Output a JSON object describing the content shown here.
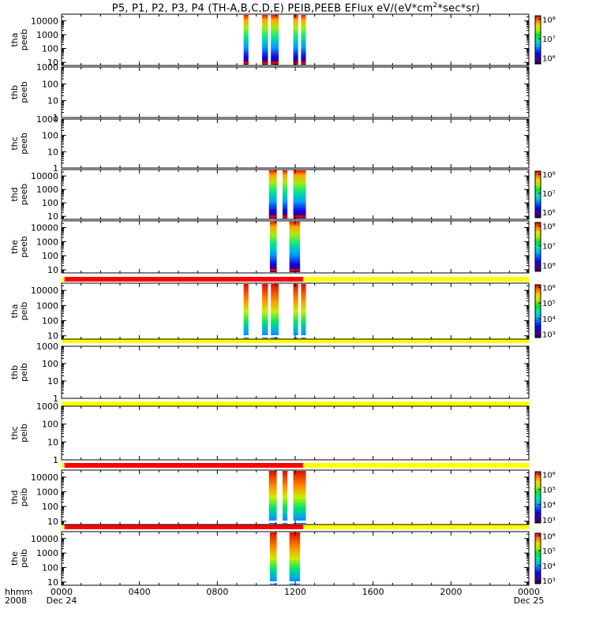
{
  "title": {
    "before_sup1": "P5, P1, P2, P3, P4 (TH-A,B,C,D,E) PEIB,PEEB EFlux eV/(eV*cm",
    "sup1": "2",
    "after_sup1": "*sec*sr)"
  },
  "colors": {
    "mode_red": "#ff0000",
    "mode_yellow": "#ffff00",
    "axis": "#000000"
  },
  "chart_data": {
    "type": "heatmap",
    "x_axis": {
      "label_line1": "hhmm",
      "label_line2": "2008",
      "tick_labels": [
        "0000",
        "0400",
        "0800",
        "1200",
        "1600",
        "2000",
        "0000"
      ],
      "tick_hours": [
        0,
        4,
        8,
        12,
        16,
        20,
        24
      ],
      "date_labels": [
        {
          "text": "Dec 24",
          "hour": 0
        },
        {
          "text": "Dec 25",
          "hour": 24
        }
      ],
      "range_hours": [
        0,
        24
      ],
      "start": "2008-12-24 00:00",
      "end": "2008-12-25 00:00"
    },
    "panels": [
      {
        "id": "tha_peeb",
        "probe": "tha",
        "instrument": "peeb",
        "ylog": true,
        "ylim": [
          6,
          30000
        ],
        "y_tick_labels": [
          "10",
          "100",
          "1000",
          "10000"
        ],
        "y_tick_values": [
          10,
          100,
          1000,
          10000
        ],
        "colorbar": {
          "tick_labels": [
            "10⁶",
            "10⁷",
            "10⁸"
          ],
          "tick_values": [
            1000000,
            10000000,
            100000000
          ],
          "range": [
            500000,
            150000000
          ]
        },
        "data_intervals": [
          {
            "start": 9.35,
            "end": 9.6
          },
          {
            "start": 10.3,
            "end": 10.6
          },
          {
            "start": 10.75,
            "end": 11.15
          },
          {
            "start": 11.9,
            "end": 12.15
          },
          {
            "start": 12.3,
            "end": 12.55
          }
        ]
      },
      {
        "id": "thb_peeb",
        "probe": "thb",
        "instrument": "peeb",
        "ylog": true,
        "ylim": [
          1,
          1000
        ],
        "y_tick_labels": [
          "1",
          "10",
          "100",
          "1000"
        ],
        "y_tick_values": [
          1,
          10,
          100,
          1000
        ],
        "data_intervals": []
      },
      {
        "id": "thc_peeb",
        "probe": "thc",
        "instrument": "peeb",
        "ylog": true,
        "ylim": [
          1,
          1000
        ],
        "y_tick_labels": [
          "1",
          "10",
          "100",
          "1000"
        ],
        "y_tick_values": [
          1,
          10,
          100,
          1000
        ],
        "data_intervals": []
      },
      {
        "id": "thd_peeb",
        "probe": "thd",
        "instrument": "peeb",
        "ylog": true,
        "ylim": [
          6,
          30000
        ],
        "y_tick_labels": [
          "10",
          "100",
          "1000",
          "10000"
        ],
        "y_tick_values": [
          10,
          100,
          1000,
          10000
        ],
        "colorbar": {
          "tick_labels": [
            "10⁶",
            "10⁷",
            "10⁸"
          ],
          "tick_values": [
            1000000,
            10000000,
            100000000
          ],
          "range": [
            500000,
            150000000
          ]
        },
        "data_intervals": [
          {
            "start": 10.65,
            "end": 11.05
          },
          {
            "start": 11.35,
            "end": 11.6
          },
          {
            "start": 11.9,
            "end": 12.55
          }
        ]
      },
      {
        "id": "the_peeb",
        "probe": "the",
        "instrument": "peeb",
        "ylog": true,
        "ylim": [
          6,
          30000
        ],
        "y_tick_labels": [
          "10",
          "100",
          "1000",
          "10000"
        ],
        "y_tick_values": [
          10,
          100,
          1000,
          10000
        ],
        "colorbar": {
          "tick_labels": [
            "10⁶",
            "10⁷",
            "10⁸"
          ],
          "tick_values": [
            1000000,
            10000000,
            100000000
          ],
          "range": [
            500000,
            150000000
          ]
        },
        "data_intervals": [
          {
            "start": 10.7,
            "end": 11.05
          },
          {
            "start": 11.7,
            "end": 12.25
          }
        ]
      },
      {
        "id": "tha_peib",
        "probe": "tha",
        "instrument": "peib",
        "ylog": true,
        "ylim": [
          6,
          30000
        ],
        "y_tick_labels": [
          "10",
          "100",
          "1000",
          "10000"
        ],
        "y_tick_values": [
          10,
          100,
          1000,
          10000
        ],
        "colorbar": {
          "tick_labels": [
            "10³",
            "10⁴",
            "10⁵",
            "10⁶"
          ],
          "tick_values": [
            1000,
            10000,
            100000,
            1000000
          ],
          "range": [
            600,
            1500000
          ]
        },
        "mode_bar": {
          "red": [
            0.15,
            12.4
          ]
        },
        "data_intervals": [
          {
            "start": 9.35,
            "end": 9.6
          },
          {
            "start": 10.3,
            "end": 10.6
          },
          {
            "start": 10.75,
            "end": 11.15
          },
          {
            "start": 11.9,
            "end": 12.15
          },
          {
            "start": 12.3,
            "end": 12.55
          }
        ]
      },
      {
        "id": "thb_peib",
        "probe": "thb",
        "instrument": "peib",
        "ylog": true,
        "ylim": [
          1,
          1000
        ],
        "y_tick_labels": [
          "1",
          "10",
          "100",
          "1000"
        ],
        "y_tick_values": [
          1,
          10,
          100,
          1000
        ],
        "mode_bar": {
          "red": null
        },
        "data_intervals": []
      },
      {
        "id": "thc_peib",
        "probe": "thc",
        "instrument": "peib",
        "ylog": true,
        "ylim": [
          1,
          1000
        ],
        "y_tick_labels": [
          "1",
          "10",
          "100",
          "1000"
        ],
        "y_tick_values": [
          1,
          10,
          100,
          1000
        ],
        "mode_bar": {
          "red": null
        },
        "data_intervals": []
      },
      {
        "id": "thd_peib",
        "probe": "thd",
        "instrument": "peib",
        "ylog": true,
        "ylim": [
          6,
          30000
        ],
        "y_tick_labels": [
          "10",
          "100",
          "1000",
          "10000"
        ],
        "y_tick_values": [
          10,
          100,
          1000,
          10000
        ],
        "colorbar": {
          "tick_labels": [
            "10³",
            "10⁴",
            "10⁵",
            "10⁶"
          ],
          "tick_values": [
            1000,
            10000,
            100000,
            1000000
          ],
          "range": [
            600,
            1500000
          ]
        },
        "mode_bar": {
          "red": [
            0.15,
            12.4
          ]
        },
        "data_intervals": [
          {
            "start": 10.65,
            "end": 11.05
          },
          {
            "start": 11.35,
            "end": 11.6
          },
          {
            "start": 11.9,
            "end": 12.55
          }
        ]
      },
      {
        "id": "the_peib",
        "probe": "the",
        "instrument": "peib",
        "ylog": true,
        "ylim": [
          6,
          30000
        ],
        "y_tick_labels": [
          "10",
          "100",
          "1000",
          "10000"
        ],
        "y_tick_values": [
          10,
          100,
          1000,
          10000
        ],
        "colorbar": {
          "tick_labels": [
            "10³",
            "10⁴",
            "10⁵",
            "10⁶"
          ],
          "tick_values": [
            1000,
            10000,
            100000,
            1000000
          ],
          "range": [
            600,
            1500000
          ]
        },
        "mode_bar": {
          "red": [
            0.15,
            12.4
          ]
        },
        "data_intervals": [
          {
            "start": 10.7,
            "end": 11.05
          },
          {
            "start": 11.7,
            "end": 12.25
          }
        ]
      }
    ]
  }
}
